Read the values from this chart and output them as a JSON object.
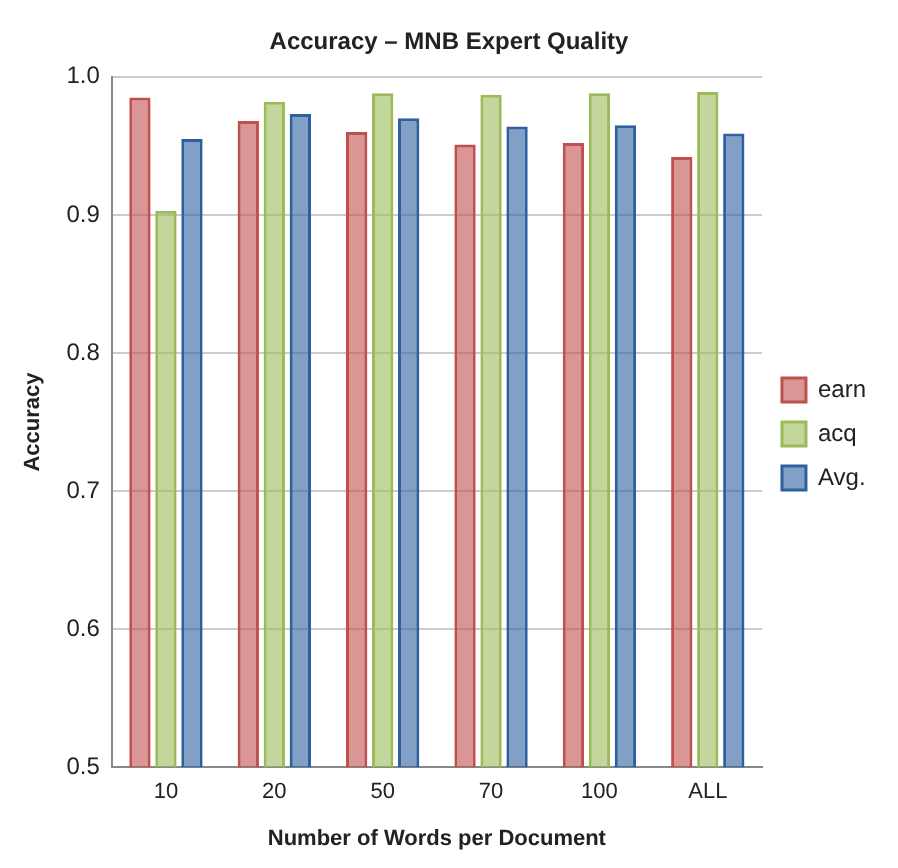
{
  "chart_data": {
    "type": "bar",
    "title": "Accuracy – MNB Expert Quality",
    "xlabel": "Number of Words per Document",
    "ylabel": "Accuracy",
    "categories": [
      "10",
      "20",
      "50",
      "70",
      "100",
      "ALL"
    ],
    "series": [
      {
        "name": "earn",
        "color": "#c0504d",
        "values": [
          0.985,
          0.968,
          0.96,
          0.951,
          0.952,
          0.942
        ]
      },
      {
        "name": "acq",
        "color": "#9bbb59",
        "values": [
          0.903,
          0.982,
          0.988,
          0.987,
          0.988,
          0.989
        ]
      },
      {
        "name": "Avg.",
        "color": "#2e5f9e",
        "values": [
          0.955,
          0.973,
          0.97,
          0.964,
          0.965,
          0.959
        ]
      }
    ],
    "ylim": [
      0.5,
      1.0
    ],
    "yticks": [
      {
        "value": 0.5,
        "label": "0.5"
      },
      {
        "value": 0.6,
        "label": "0.6"
      },
      {
        "value": 0.7,
        "label": "0.7"
      },
      {
        "value": 0.8,
        "label": "0.8"
      },
      {
        "value": 0.9,
        "label": "0.9"
      },
      {
        "value": 1.0,
        "label": "1.0"
      }
    ],
    "grid": "y",
    "legend": "right"
  }
}
